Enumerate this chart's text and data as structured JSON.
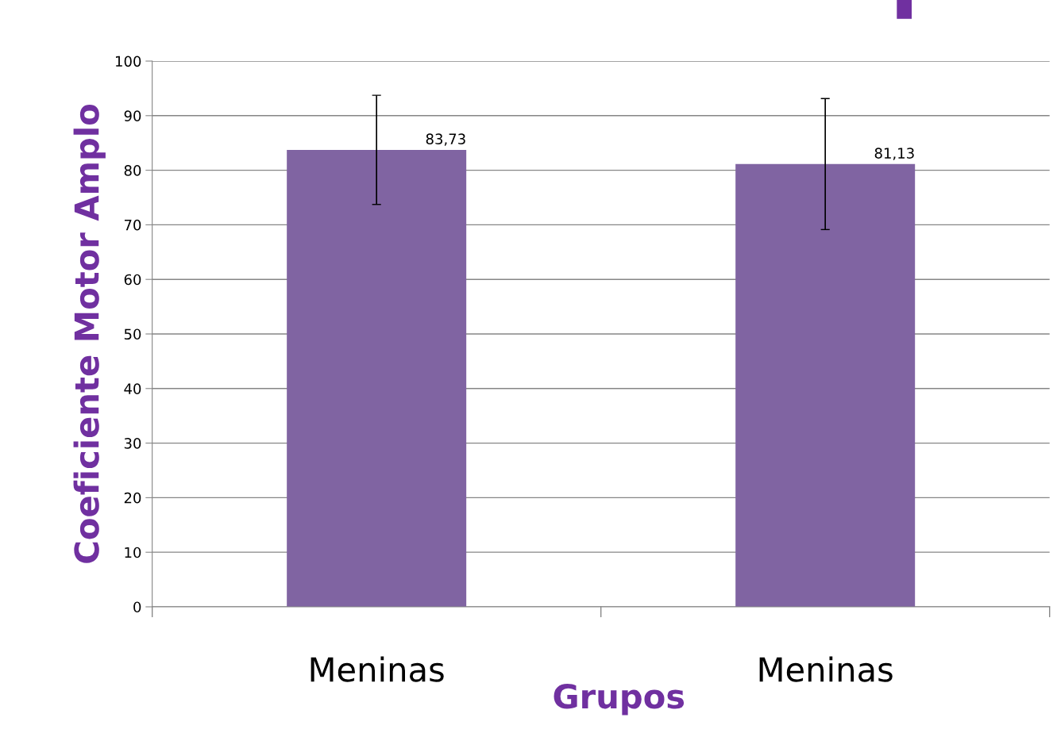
{
  "chart_data": {
    "type": "bar",
    "xlabel": "Grupos",
    "ylabel": "Coeficiente Motor Amplo",
    "categories": [
      "Meninas",
      "Meninas"
    ],
    "values": [
      83.73,
      81.13
    ],
    "errors": [
      10,
      12
    ],
    "value_labels": [
      "83,73",
      "81,13"
    ],
    "color": "#8064a2",
    "ylim": [
      0,
      100
    ],
    "yticks": [
      0,
      10,
      20,
      30,
      40,
      50,
      60,
      70,
      80,
      90,
      100
    ],
    "grid": "y",
    "legend": false
  }
}
